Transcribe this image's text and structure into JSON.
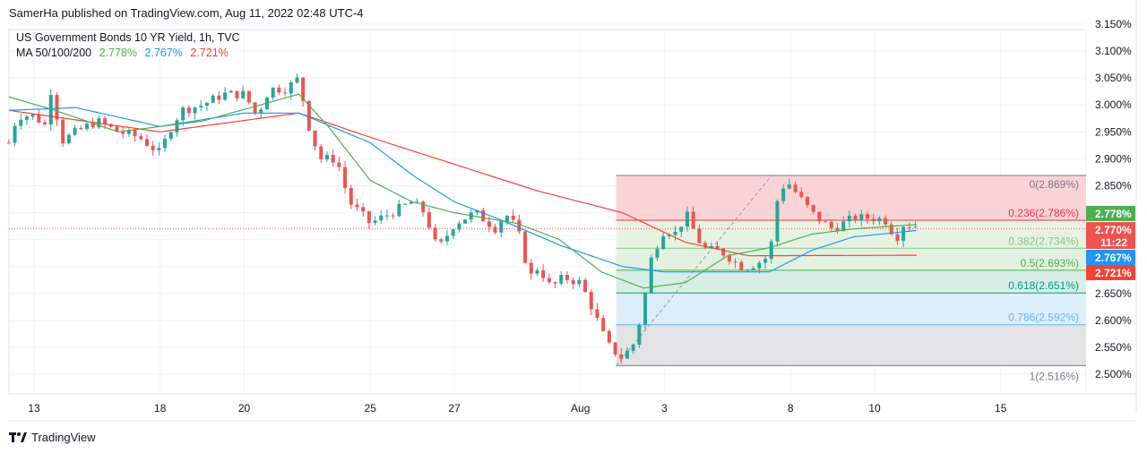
{
  "header": {
    "published": "SamerHa published on TradingView.com, Aug 11, 2022 02:48 UTC-4"
  },
  "legend": {
    "title": "US Government Bonds 10 YR Yield, 1h, TVC",
    "ma_label": "MA 50/100/200",
    "ma50": "2.778%",
    "ma100": "2.767%",
    "ma200": "2.721%"
  },
  "footer": {
    "brand": "TradingView"
  },
  "colors": {
    "up": "#26a69a",
    "down": "#ef5350",
    "ma50": "#4caf50",
    "ma100": "#2196f3",
    "ma200": "#f44336"
  },
  "chart_data": {
    "type": "candlestick",
    "title": "US Government Bonds 10 YR Yield, 1h, TVC",
    "ylim": [
      2.49,
      3.16
    ],
    "y_ticks": [
      "3.150%",
      "3.100%",
      "3.050%",
      "3.000%",
      "2.950%",
      "2.900%",
      "2.850%",
      "2.650%",
      "2.600%",
      "2.550%",
      "2.500%"
    ],
    "y_tick_values": [
      3.15,
      3.1,
      3.05,
      3.0,
      2.95,
      2.9,
      2.85,
      2.65,
      2.6,
      2.55,
      2.5
    ],
    "x_ticks": [
      {
        "label": "13",
        "t": 0
      },
      {
        "label": "18",
        "t": 3
      },
      {
        "label": "20",
        "t": 5
      },
      {
        "label": "25",
        "t": 8
      },
      {
        "label": "27",
        "t": 10
      },
      {
        "label": "Aug",
        "t": 13
      },
      {
        "label": "3",
        "t": 15
      },
      {
        "label": "8",
        "t": 18
      },
      {
        "label": "10",
        "t": 20
      },
      {
        "label": "15",
        "t": 23
      }
    ],
    "price_path": [
      [
        -0.6,
        2.93
      ],
      [
        -0.4,
        2.98
      ],
      [
        0,
        2.98
      ],
      [
        0.3,
        2.96
      ],
      [
        0.45,
        3.06
      ],
      [
        0.6,
        2.93
      ],
      [
        1,
        2.95
      ],
      [
        1.5,
        2.97
      ],
      [
        2,
        2.95
      ],
      [
        2.5,
        2.94
      ],
      [
        3,
        2.91
      ],
      [
        3.2,
        2.95
      ],
      [
        3.5,
        2.99
      ],
      [
        4,
        3.0
      ],
      [
        4.5,
        3.02
      ],
      [
        5,
        3.02
      ],
      [
        5.3,
        2.98
      ],
      [
        5.6,
        3.03
      ],
      [
        6,
        3.03
      ],
      [
        6.3,
        3.05
      ],
      [
        6.5,
        2.97
      ],
      [
        6.8,
        2.9
      ],
      [
        7.2,
        2.9
      ],
      [
        7.5,
        2.82
      ],
      [
        8,
        2.78
      ],
      [
        8.5,
        2.8
      ],
      [
        9,
        2.82
      ],
      [
        9.3,
        2.8
      ],
      [
        9.6,
        2.73
      ],
      [
        10,
        2.78
      ],
      [
        10.5,
        2.8
      ],
      [
        11,
        2.77
      ],
      [
        11.2,
        2.8
      ],
      [
        11.5,
        2.77
      ],
      [
        11.8,
        2.68
      ],
      [
        12,
        2.7
      ],
      [
        12.3,
        2.66
      ],
      [
        12.6,
        2.68
      ],
      [
        13,
        2.67
      ],
      [
        13.3,
        2.62
      ],
      [
        13.5,
        2.58
      ],
      [
        13.7,
        2.55
      ],
      [
        14,
        2.53
      ],
      [
        14.3,
        2.56
      ],
      [
        14.5,
        2.63
      ],
      [
        14.7,
        2.72
      ],
      [
        15,
        2.77
      ],
      [
        15.3,
        2.76
      ],
      [
        15.5,
        2.8
      ],
      [
        15.8,
        2.75
      ],
      [
        16,
        2.73
      ],
      [
        16.3,
        2.73
      ],
      [
        16.5,
        2.72
      ],
      [
        16.8,
        2.7
      ],
      [
        17,
        2.7
      ],
      [
        17.3,
        2.71
      ],
      [
        17.5,
        2.72
      ],
      [
        17.7,
        2.83
      ],
      [
        17.9,
        2.86
      ],
      [
        18.2,
        2.83
      ],
      [
        18.5,
        2.8
      ],
      [
        18.8,
        2.78
      ],
      [
        19,
        2.77
      ],
      [
        19.5,
        2.79
      ],
      [
        20,
        2.79
      ],
      [
        20.3,
        2.785
      ],
      [
        20.5,
        2.75
      ],
      [
        20.7,
        2.78
      ],
      [
        21,
        2.775
      ]
    ],
    "ma50": [
      [
        -0.6,
        3.015
      ],
      [
        0.5,
        2.99
      ],
      [
        2,
        2.95
      ],
      [
        4,
        2.97
      ],
      [
        6.3,
        3.02
      ],
      [
        7,
        2.96
      ],
      [
        8,
        2.86
      ],
      [
        9,
        2.82
      ],
      [
        10,
        2.8
      ],
      [
        11.5,
        2.78
      ],
      [
        12.5,
        2.75
      ],
      [
        13.5,
        2.69
      ],
      [
        14.5,
        2.66
      ],
      [
        15.5,
        2.67
      ],
      [
        16.5,
        2.72
      ],
      [
        17.5,
        2.735
      ],
      [
        18.5,
        2.76
      ],
      [
        19.5,
        2.77
      ],
      [
        21,
        2.778
      ]
    ],
    "ma100": [
      [
        -0.6,
        2.99
      ],
      [
        1,
        2.995
      ],
      [
        3,
        2.96
      ],
      [
        5,
        2.985
      ],
      [
        6.3,
        2.985
      ],
      [
        8,
        2.93
      ],
      [
        9,
        2.87
      ],
      [
        10,
        2.82
      ],
      [
        11,
        2.79
      ],
      [
        12.5,
        2.74
      ],
      [
        14,
        2.7
      ],
      [
        15,
        2.69
      ],
      [
        16.5,
        2.69
      ],
      [
        17.5,
        2.69
      ],
      [
        18.5,
        2.73
      ],
      [
        19.5,
        2.755
      ],
      [
        21,
        2.767
      ]
    ],
    "ma200": [
      [
        -0.6,
        2.99
      ],
      [
        3,
        2.95
      ],
      [
        6.3,
        2.985
      ],
      [
        8,
        2.94
      ],
      [
        10,
        2.89
      ],
      [
        12,
        2.84
      ],
      [
        14,
        2.8
      ],
      [
        15.5,
        2.745
      ],
      [
        17,
        2.72
      ],
      [
        21,
        2.721
      ]
    ],
    "fib": {
      "levels": [
        {
          "label": "0(2.869%)",
          "ratio": 0,
          "price": 2.869,
          "color": "#787b86",
          "fill": "#f9d3d6"
        },
        {
          "label": "0.236(2.786%)",
          "ratio": 0.236,
          "price": 2.786,
          "color": "#f23645",
          "fill": "#e7f3e2"
        },
        {
          "label": "0.382(2.734%)",
          "ratio": 0.382,
          "price": 2.734,
          "color": "#81c784",
          "fill": "#e3f1e0"
        },
        {
          "label": "0.5(2.693%)",
          "ratio": 0.5,
          "price": 2.693,
          "color": "#4caf50",
          "fill": "#d6eee6"
        },
        {
          "label": "0.618(2.651%)",
          "ratio": 0.618,
          "price": 2.651,
          "color": "#089981",
          "fill": "#ddeefb"
        },
        {
          "label": "0.786(2.592%)",
          "ratio": 0.786,
          "price": 2.592,
          "color": "#64b5f6",
          "fill": "#e3e3e5"
        },
        {
          "label": "1(2.516%)",
          "ratio": 1,
          "price": 2.516,
          "color": "#787b86",
          "fill": null
        }
      ],
      "t_start": 13.85
    },
    "trend_line": {
      "from": [
        13.85,
        2.516
      ],
      "to": [
        17.55,
        2.869
      ]
    },
    "badges": [
      {
        "value": "2.778%",
        "price": 2.778,
        "color": "#4caf50"
      },
      {
        "value": "2.770%",
        "sub": "11:22",
        "price": 2.77,
        "color": "#ef5350"
      },
      {
        "value": "2.767%",
        "price": 2.767,
        "color": "#2196f3"
      },
      {
        "value": "2.721%",
        "price": 2.721,
        "color": "#f44336"
      }
    ],
    "last_price": 2.77
  }
}
